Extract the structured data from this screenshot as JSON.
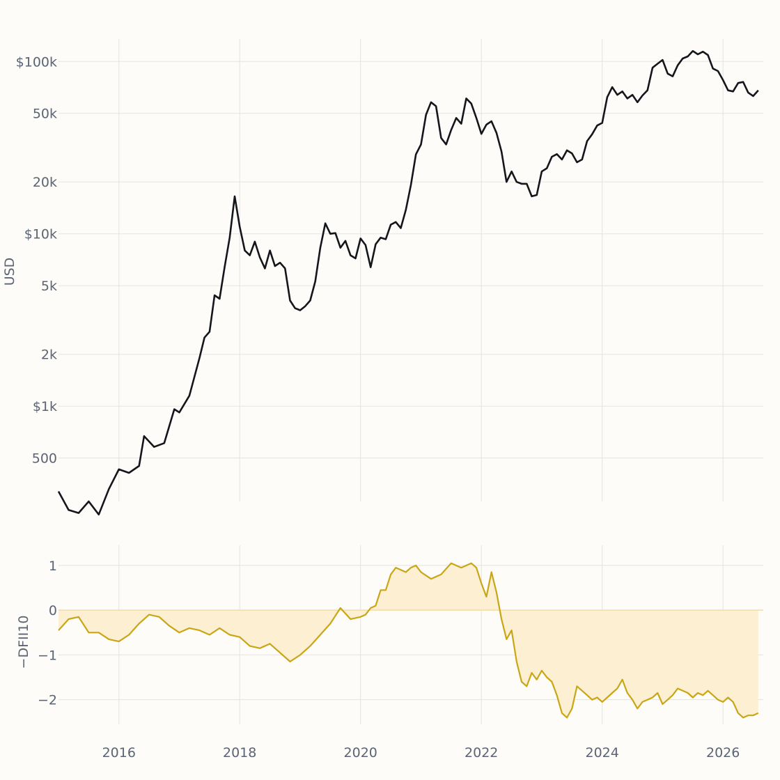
{
  "chart_data": [
    {
      "type": "line",
      "ylabel": "USD",
      "yscale": "log",
      "ylim": [
        280,
        135000
      ],
      "xlim": [
        "2015-01",
        "2026-09"
      ],
      "yticks": [
        {
          "value": 500,
          "label": "500"
        },
        {
          "value": 1000,
          "label": "$1k"
        },
        {
          "value": 2000,
          "label": "2k"
        },
        {
          "value": 5000,
          "label": "5k"
        },
        {
          "value": 10000,
          "label": "$10k"
        },
        {
          "value": 20000,
          "label": "20k"
        },
        {
          "value": 50000,
          "label": "50k"
        },
        {
          "value": 100000,
          "label": "$100k"
        }
      ],
      "grid": true,
      "line_color": "#14161c",
      "series": [
        {
          "x": [
            "2015-01",
            "2015-03",
            "2015-05",
            "2015-07",
            "2015-09",
            "2015-11",
            "2016-01",
            "2016-03",
            "2016-05",
            "2016-06",
            "2016-08",
            "2016-10",
            "2016-12",
            "2017-01",
            "2017-03",
            "2017-05",
            "2017-06",
            "2017-07",
            "2017-08",
            "2017-09",
            "2017-10",
            "2017-11",
            "2017-12",
            "2018-01",
            "2018-02",
            "2018-03",
            "2018-04",
            "2018-05",
            "2018-06",
            "2018-07",
            "2018-08",
            "2018-09",
            "2018-10",
            "2018-11",
            "2018-12",
            "2019-01",
            "2019-02",
            "2019-03",
            "2019-04",
            "2019-05",
            "2019-06",
            "2019-07",
            "2019-08",
            "2019-09",
            "2019-10",
            "2019-11",
            "2019-12",
            "2020-01",
            "2020-02",
            "2020-03",
            "2020-04",
            "2020-05",
            "2020-06",
            "2020-07",
            "2020-08",
            "2020-09",
            "2020-10",
            "2020-11",
            "2020-12",
            "2021-01",
            "2021-02",
            "2021-03",
            "2021-04",
            "2021-05",
            "2021-06",
            "2021-07",
            "2021-08",
            "2021-09",
            "2021-10",
            "2021-11",
            "2021-12",
            "2022-01",
            "2022-02",
            "2022-03",
            "2022-04",
            "2022-05",
            "2022-06",
            "2022-07",
            "2022-08",
            "2022-09",
            "2022-10",
            "2022-11",
            "2022-12",
            "2023-01",
            "2023-02",
            "2023-03",
            "2023-04",
            "2023-05",
            "2023-06",
            "2023-07",
            "2023-08",
            "2023-09",
            "2023-10",
            "2023-11",
            "2023-12",
            "2024-01",
            "2024-02",
            "2024-03",
            "2024-04",
            "2024-05",
            "2024-06",
            "2024-07",
            "2024-08",
            "2024-09",
            "2024-10",
            "2024-11",
            "2024-12",
            "2025-01",
            "2025-02",
            "2025-03",
            "2025-04",
            "2025-05",
            "2025-06",
            "2025-07",
            "2025-08",
            "2025-09",
            "2025-10",
            "2025-11",
            "2025-12",
            "2026-01",
            "2026-02",
            "2026-03",
            "2026-04",
            "2026-05",
            "2026-06",
            "2026-07",
            "2026-08"
          ],
          "y": [
            320,
            250,
            240,
            280,
            235,
            330,
            430,
            410,
            450,
            670,
            580,
            610,
            960,
            920,
            1150,
            1900,
            2500,
            2700,
            4400,
            4200,
            6400,
            9500,
            16500,
            11000,
            8000,
            7500,
            9000,
            7300,
            6300,
            8000,
            6500,
            6800,
            6300,
            4100,
            3700,
            3600,
            3800,
            4100,
            5300,
            8300,
            11500,
            10000,
            10100,
            8300,
            9100,
            7500,
            7200,
            9400,
            8600,
            6400,
            8700,
            9500,
            9300,
            11300,
            11700,
            10800,
            13800,
            19200,
            28900,
            33000,
            49000,
            58000,
            55000,
            36000,
            33000,
            40000,
            47000,
            43500,
            61000,
            57000,
            47000,
            38000,
            43000,
            45000,
            38500,
            30000,
            20000,
            23000,
            20000,
            19500,
            19500,
            16500,
            16800,
            23000,
            24000,
            28000,
            29000,
            27000,
            30500,
            29300,
            26000,
            27000,
            34500,
            37800,
            42500,
            44000,
            62000,
            71000,
            64000,
            67000,
            61000,
            64000,
            58000,
            63500,
            68000,
            92000,
            97000,
            102000,
            85000,
            82000,
            95000,
            104000,
            107000,
            115000,
            110000,
            114000,
            109000,
            91000,
            88000,
            78000,
            68000,
            67000,
            75000,
            76000,
            66000,
            63000,
            68000
          ]
        }
      ]
    },
    {
      "type": "area",
      "ylabel": "−DFII10",
      "ylim": [
        -2.55,
        1.45
      ],
      "xlim": [
        "2015-01",
        "2026-09"
      ],
      "yticks": [
        {
          "value": 1,
          "label": "1"
        },
        {
          "value": 0,
          "label": "0"
        },
        {
          "value": -1,
          "label": "−1"
        },
        {
          "value": -2,
          "label": "−2"
        }
      ],
      "xticks": [
        "2016",
        "2018",
        "2020",
        "2022",
        "2024",
        "2026"
      ],
      "grid": true,
      "line_color": "#c9a615",
      "fill_color": "#fdefd2",
      "series": [
        {
          "x": [
            "2015-01",
            "2015-03",
            "2015-05",
            "2015-07",
            "2015-09",
            "2015-11",
            "2016-01",
            "2016-03",
            "2016-05",
            "2016-07",
            "2016-09",
            "2016-11",
            "2017-01",
            "2017-03",
            "2017-05",
            "2017-07",
            "2017-09",
            "2017-11",
            "2018-01",
            "2018-03",
            "2018-05",
            "2018-07",
            "2018-09",
            "2018-11",
            "2019-01",
            "2019-03",
            "2019-05",
            "2019-07",
            "2019-09",
            "2019-11",
            "2020-01",
            "2020-02",
            "2020-03",
            "2020-04",
            "2020-05",
            "2020-06",
            "2020-07",
            "2020-08",
            "2020-09",
            "2020-10",
            "2020-11",
            "2020-12",
            "2021-01",
            "2021-03",
            "2021-05",
            "2021-07",
            "2021-09",
            "2021-11",
            "2021-12",
            "2022-01",
            "2022-02",
            "2022-03",
            "2022-04",
            "2022-05",
            "2022-06",
            "2022-07",
            "2022-08",
            "2022-09",
            "2022-10",
            "2022-11",
            "2022-12",
            "2023-01",
            "2023-02",
            "2023-03",
            "2023-04",
            "2023-05",
            "2023-06",
            "2023-07",
            "2023-08",
            "2023-09",
            "2023-10",
            "2023-11",
            "2023-12",
            "2024-01",
            "2024-02",
            "2024-03",
            "2024-04",
            "2024-05",
            "2024-06",
            "2024-07",
            "2024-08",
            "2024-09",
            "2024-10",
            "2024-11",
            "2024-12",
            "2025-01",
            "2025-02",
            "2025-03",
            "2025-04",
            "2025-05",
            "2025-06",
            "2025-07",
            "2025-08",
            "2025-09",
            "2025-10",
            "2025-11",
            "2025-12",
            "2026-01",
            "2026-02",
            "2026-03",
            "2026-04",
            "2026-05",
            "2026-06",
            "2026-07",
            "2026-08"
          ],
          "y": [
            -0.45,
            -0.2,
            -0.15,
            -0.5,
            -0.5,
            -0.65,
            -0.7,
            -0.55,
            -0.3,
            -0.1,
            -0.15,
            -0.35,
            -0.5,
            -0.4,
            -0.45,
            -0.55,
            -0.4,
            -0.55,
            -0.6,
            -0.8,
            -0.85,
            -0.75,
            -0.95,
            -1.15,
            -1.0,
            -0.8,
            -0.55,
            -0.3,
            0.05,
            -0.2,
            -0.15,
            -0.1,
            0.05,
            0.1,
            0.45,
            0.45,
            0.8,
            0.95,
            0.9,
            0.85,
            0.95,
            1.0,
            0.85,
            0.7,
            0.8,
            1.05,
            0.95,
            1.05,
            0.95,
            0.6,
            0.3,
            0.85,
            0.4,
            -0.2,
            -0.65,
            -0.45,
            -1.15,
            -1.6,
            -1.7,
            -1.4,
            -1.55,
            -1.35,
            -1.5,
            -1.6,
            -1.9,
            -2.3,
            -2.4,
            -2.2,
            -1.7,
            -1.8,
            -1.9,
            -2.0,
            -1.95,
            -2.05,
            -1.95,
            -1.85,
            -1.75,
            -1.55,
            -1.85,
            -2.0,
            -2.2,
            -2.05,
            -2.0,
            -1.95,
            -1.85,
            -2.1,
            -2.0,
            -1.9,
            -1.75,
            -1.8,
            -1.85,
            -1.95,
            -1.85,
            -1.9,
            -1.8,
            -1.9,
            -2.0,
            -2.05,
            -1.95,
            -2.05,
            -2.3,
            -2.4,
            -2.35,
            -2.35,
            -2.3
          ]
        }
      ]
    }
  ]
}
